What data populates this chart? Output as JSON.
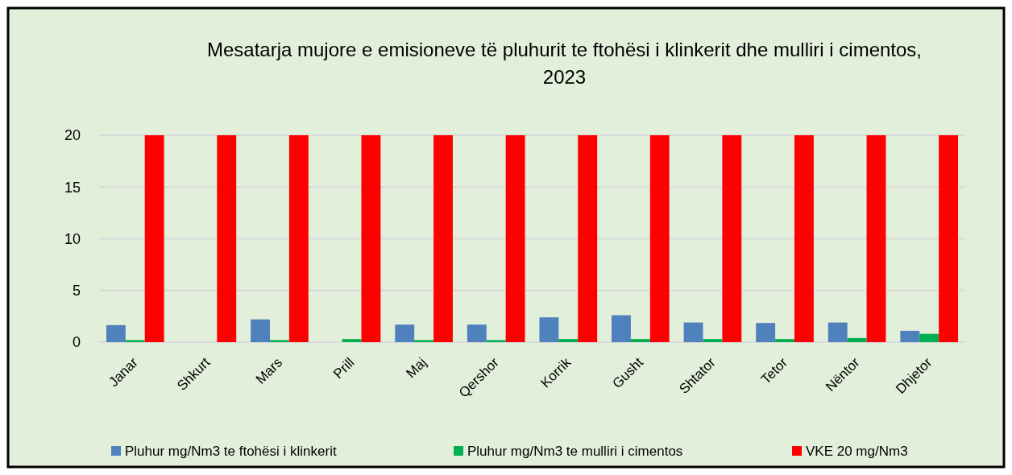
{
  "chart_data": {
    "type": "bar",
    "title": "Mesatarja mujore e emisioneve të pluhurit te ftohësi i klinkerit dhe mulliri i cimentos, 2023",
    "categories": [
      "Janar",
      "Shkurt",
      "Mars",
      "Prill",
      "Maj",
      "Qershor",
      "Korrik",
      "Gusht",
      "Shtator",
      "Tetor",
      "Nëntor",
      "Dhjetor"
    ],
    "series": [
      {
        "name": "Pluhur mg/Nm3 te ftohësi i klinkerit",
        "color": "#4f81bd",
        "values": [
          1.65,
          null,
          2.2,
          0,
          1.7,
          1.7,
          2.4,
          2.6,
          1.9,
          1.85,
          1.9,
          1.1
        ]
      },
      {
        "name": "Pluhur mg/Nm3 te mulliri i cimentos",
        "color": "#00b050",
        "values": [
          0.2,
          null,
          0.2,
          0.3,
          0.2,
          0.2,
          0.3,
          0.3,
          0.3,
          0.3,
          0.4,
          0.8
        ]
      },
      {
        "name": "VKE 20 mg/Nm3",
        "color": "#ff0000",
        "values": [
          20,
          20,
          20,
          20,
          20,
          20,
          20,
          20,
          20,
          20,
          20,
          20
        ]
      }
    ],
    "ylim": [
      0,
      20
    ],
    "yticks": [
      0,
      5,
      10,
      15,
      20
    ],
    "grid": "y",
    "legend": "bottom"
  }
}
